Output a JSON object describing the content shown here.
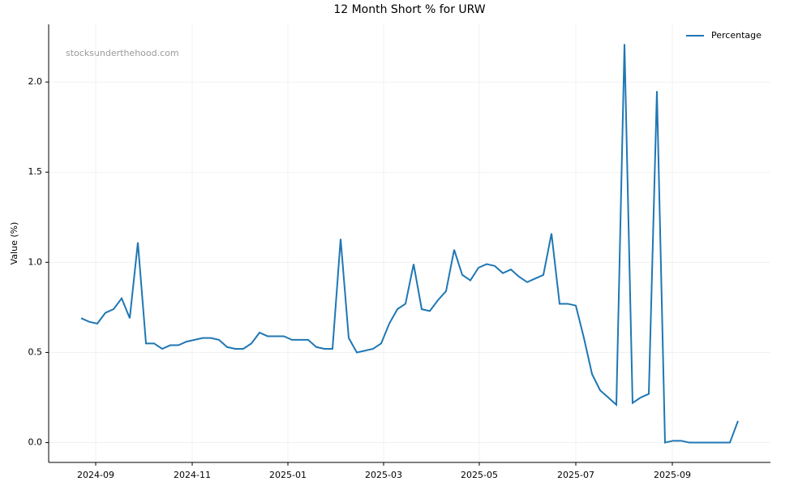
{
  "chart_data": {
    "type": "line",
    "title": "12 Month Short % for URW",
    "ylabel": "Value (%)",
    "watermark": "stocksunderthehood.com",
    "legend": "upper right",
    "grid": true,
    "series": [
      {
        "name": "Percentage",
        "color": "#1f77b4",
        "values": [
          0.69,
          0.67,
          0.66,
          0.72,
          0.74,
          0.8,
          0.69,
          1.11,
          0.55,
          0.55,
          0.52,
          0.54,
          0.54,
          0.56,
          0.57,
          0.58,
          0.58,
          0.57,
          0.53,
          0.52,
          0.52,
          0.55,
          0.61,
          0.59,
          0.59,
          0.59,
          0.57,
          0.57,
          0.57,
          0.53,
          0.52,
          0.52,
          1.13,
          0.58,
          0.5,
          0.51,
          0.52,
          0.55,
          0.66,
          0.74,
          0.77,
          0.99,
          0.74,
          0.73,
          0.79,
          0.84,
          1.07,
          0.93,
          0.9,
          0.97,
          0.99,
          0.98,
          0.94,
          0.96,
          0.92,
          0.89,
          0.91,
          0.93,
          1.16,
          0.77,
          0.77,
          0.76,
          0.58,
          0.38,
          0.29,
          0.25,
          0.21,
          2.21,
          0.22,
          0.25,
          0.27,
          1.95,
          0.0,
          0.01,
          0.01,
          0.0,
          0.0,
          0.0,
          0.0,
          0.0,
          0.0,
          0.12
        ]
      }
    ],
    "xlim": [
      -4,
      85
    ],
    "xticks": [
      {
        "value": 1.8,
        "label": "2024-09"
      },
      {
        "value": 13.7,
        "label": "2024-11"
      },
      {
        "value": 25.5,
        "label": "2025-01"
      },
      {
        "value": 37.3,
        "label": "2025-03"
      },
      {
        "value": 49.1,
        "label": "2025-05"
      },
      {
        "value": 61,
        "label": "2025-07"
      },
      {
        "value": 72.9,
        "label": "2025-09"
      }
    ],
    "ylim": [
      -0.11,
      2.32
    ],
    "yticks": [
      {
        "value": 0,
        "label": "0.0"
      },
      0.5,
      {
        "value": 1,
        "label": "1.0"
      },
      1.5,
      {
        "value": 2,
        "label": "2.0"
      }
    ]
  }
}
